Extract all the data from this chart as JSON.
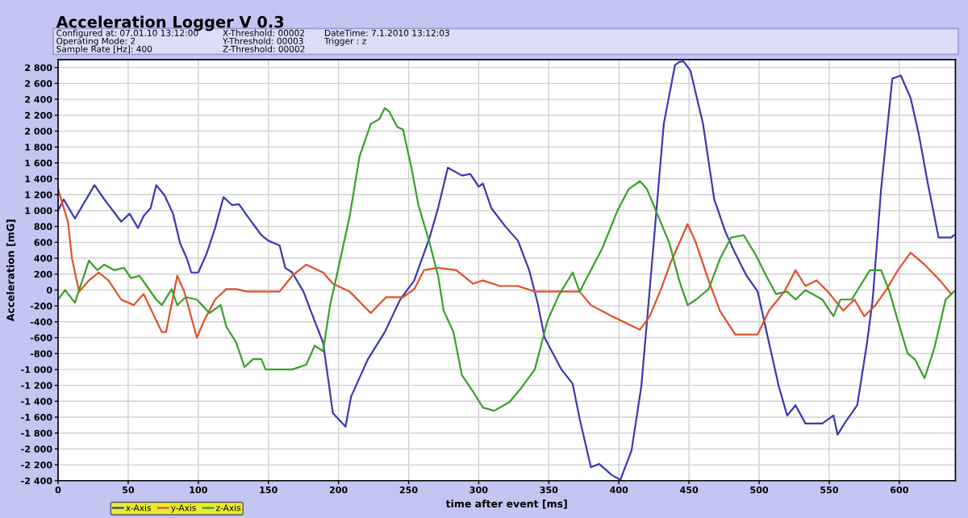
{
  "chart_data": {
    "type": "line",
    "title": "Acceleration Logger V 0.3",
    "xlabel": "time after event [ms]",
    "ylabel": "Acceleration [mG]",
    "annotations": [
      "Configured at: 07.01.10 13:12:00",
      "Operating Mode: 2",
      "Sample Rate [Hz]: 400",
      "X-Threshold: 00002",
      "Y-Threshold: 00003",
      "Z-Threshold: 00002",
      "DateTime: 7.1.2010 13:12:03",
      "Trigger : z"
    ],
    "xlim": [
      0,
      640
    ],
    "ylim": [
      -2400,
      2900
    ],
    "xticks": [
      0,
      50,
      100,
      150,
      200,
      250,
      300,
      350,
      400,
      450,
      500,
      550,
      600
    ],
    "yticks": [
      {
        "value": -2400,
        "label": "-2 400"
      },
      {
        "value": -2200,
        "label": "-2 200"
      },
      {
        "value": -2000,
        "label": "-2 000"
      },
      {
        "value": -1800,
        "label": "-1 800"
      },
      {
        "value": -1600,
        "label": "-1 600"
      },
      {
        "value": -1400,
        "label": "-1 400"
      },
      {
        "value": -1200,
        "label": "-1 200"
      },
      {
        "value": -1000,
        "label": "-1 000"
      },
      -800,
      -600,
      -400,
      -200,
      0,
      200,
      400,
      600,
      800,
      {
        "value": 1000,
        "label": "1 000"
      },
      {
        "value": 1200,
        "label": "1 200"
      },
      {
        "value": 1400,
        "label": "1 400"
      },
      {
        "value": 1600,
        "label": "1 600"
      },
      {
        "value": 1800,
        "label": "1 800"
      },
      {
        "value": 2000,
        "label": "2 000"
      },
      {
        "value": 2200,
        "label": "2 200"
      },
      {
        "value": 2400,
        "label": "2 400"
      },
      {
        "value": 2600,
        "label": "2 600"
      },
      {
        "value": 2800,
        "label": "2 800"
      }
    ],
    "grid": true,
    "legend": "bottom left",
    "marker": "none",
    "line_style": "solid",
    "series": [
      {
        "name": "x-Axis",
        "color": "#3a3ab0",
        "x": [
          0,
          4,
          12,
          26,
          33,
          45,
          51,
          57,
          61,
          66,
          70,
          76,
          82,
          87,
          92,
          95,
          100,
          106,
          112,
          118,
          124,
          129,
          135,
          145,
          150,
          158,
          162,
          167,
          175,
          183,
          189,
          196,
          205,
          209,
          221,
          233,
          244,
          254,
          265,
          271,
          278,
          288,
          294,
          300,
          303,
          309,
          319,
          328,
          336,
          342,
          347,
          359,
          367,
          372,
          380,
          386,
          395,
          401,
          409,
          416,
          422,
          432,
          440,
          443,
          446,
          451,
          460,
          468,
          476,
          483,
          491,
          499,
          507,
          514,
          520,
          526,
          533,
          545,
          553,
          556,
          562,
          570,
          577,
          581,
          587,
          595,
          601,
          608,
          614,
          620,
          628,
          637,
          639
        ],
        "values": [
          1000,
          1140,
          900,
          1320,
          1140,
          860,
          960,
          780,
          930,
          1030,
          1320,
          1190,
          960,
          590,
          390,
          220,
          220,
          460,
          780,
          1170,
          1070,
          1080,
          930,
          690,
          620,
          560,
          280,
          220,
          -20,
          -390,
          -660,
          -1550,
          -1720,
          -1340,
          -870,
          -530,
          -120,
          120,
          660,
          1030,
          1540,
          1440,
          1460,
          1300,
          1340,
          1030,
          800,
          620,
          250,
          -160,
          -600,
          -1000,
          -1180,
          -1620,
          -2230,
          -2190,
          -2330,
          -2390,
          -2020,
          -1210,
          10,
          2090,
          2830,
          2870,
          2880,
          2760,
          2090,
          1140,
          730,
          460,
          180,
          -20,
          -660,
          -1210,
          -1580,
          -1450,
          -1680,
          -1680,
          -1580,
          -1820,
          -1650,
          -1450,
          -660,
          -120,
          1270,
          2660,
          2700,
          2420,
          1950,
          1370,
          660,
          660,
          690
        ]
      },
      {
        "name": "y-Axis",
        "color": "#e0502a",
        "x": [
          0,
          7,
          10,
          15,
          22,
          29,
          36,
          45,
          54,
          61,
          74,
          77,
          85,
          90,
          99,
          104,
          112,
          120,
          127,
          135,
          158,
          167,
          177,
          189,
          196,
          208,
          223,
          234,
          246,
          254,
          261,
          271,
          284,
          296,
          303,
          315,
          328,
          340,
          361,
          372,
          380,
          395,
          415,
          422,
          430,
          437,
          449,
          455,
          464,
          472,
          483,
          499,
          507,
          518,
          526,
          533,
          541,
          549,
          560,
          568,
          575,
          583,
          591,
          599,
          608,
          618,
          629,
          637
        ],
        "values": [
          1270,
          860,
          390,
          -20,
          120,
          220,
          120,
          -120,
          -190,
          -50,
          -530,
          -530,
          180,
          -20,
          -600,
          -390,
          -120,
          10,
          10,
          -20,
          -20,
          180,
          320,
          220,
          80,
          -20,
          -290,
          -90,
          -90,
          10,
          250,
          280,
          250,
          80,
          120,
          50,
          50,
          -20,
          -20,
          -20,
          -190,
          -330,
          -500,
          -330,
          10,
          350,
          830,
          590,
          120,
          -260,
          -560,
          -560,
          -260,
          -20,
          250,
          50,
          120,
          -20,
          -260,
          -120,
          -330,
          -190,
          10,
          250,
          470,
          320,
          120,
          -50
        ]
      },
      {
        "name": "z-Axis",
        "color": "#3aa02a",
        "x": [
          0,
          5,
          12,
          22,
          28,
          33,
          40,
          47,
          52,
          58,
          70,
          74,
          81,
          85,
          91,
          99,
          108,
          116,
          120,
          127,
          133,
          139,
          145,
          148,
          158,
          167,
          177,
          183,
          189,
          194,
          198,
          208,
          215,
          223,
          229,
          233,
          236,
          242,
          246,
          252,
          257,
          265,
          271,
          275,
          282,
          288,
          296,
          303,
          311,
          322,
          330,
          340,
          349,
          357,
          367,
          372,
          380,
          388,
          399,
          407,
          415,
          420,
          428,
          436,
          443,
          449,
          455,
          464,
          472,
          480,
          489,
          497,
          505,
          512,
          520,
          526,
          533,
          545,
          553,
          558,
          566,
          572,
          579,
          587,
          593,
          599,
          606,
          611,
          618,
          625,
          633,
          639
        ],
        "values": [
          -120,
          0,
          -160,
          370,
          250,
          320,
          250,
          280,
          150,
          180,
          -120,
          -190,
          10,
          -190,
          -90,
          -120,
          -290,
          -190,
          -460,
          -660,
          -970,
          -870,
          -870,
          -1000,
          -1000,
          -1000,
          -940,
          -700,
          -770,
          -190,
          120,
          930,
          1680,
          2090,
          2150,
          2290,
          2250,
          2050,
          2020,
          1540,
          1070,
          590,
          180,
          -260,
          -530,
          -1070,
          -1280,
          -1480,
          -1520,
          -1410,
          -1240,
          -1000,
          -390,
          -70,
          220,
          -20,
          250,
          520,
          1000,
          1270,
          1370,
          1270,
          930,
          590,
          120,
          -190,
          -120,
          10,
          390,
          660,
          690,
          460,
          180,
          -50,
          -20,
          -120,
          0,
          -120,
          -330,
          -120,
          -120,
          50,
          250,
          250,
          -20,
          -390,
          -800,
          -870,
          -1110,
          -730,
          -120,
          -20
        ]
      }
    ]
  }
}
